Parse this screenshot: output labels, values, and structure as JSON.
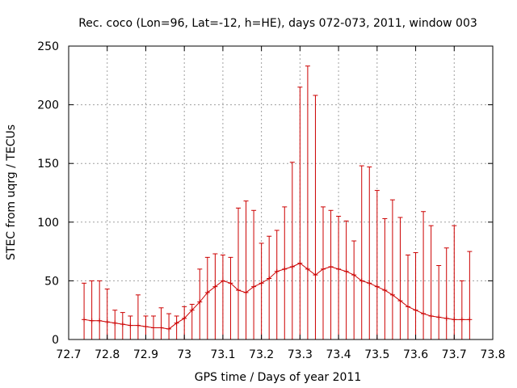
{
  "chart_data": {
    "type": "line",
    "title": "Rec. coco (Lon=96, Lat=-12, h=HE), days 072-073, 2011, window 003",
    "xlabel": "GPS time / Days of year 2011",
    "ylabel": "STEC from uqrg / TECUs",
    "xlim": [
      72.7,
      73.8
    ],
    "ylim": [
      0,
      250
    ],
    "xticks": [
      "72.7",
      "72.8",
      "72.9",
      "73",
      "73.1",
      "73.2",
      "73.3",
      "73.4",
      "73.5",
      "73.6",
      "73.7",
      "73.8"
    ],
    "yticks": [
      "0",
      "50",
      "100",
      "150",
      "200",
      "250"
    ],
    "grid": true,
    "color": "#cc0000",
    "series": [
      {
        "style": "errorbars",
        "x": [
          72.74,
          72.76,
          72.78,
          72.8,
          72.82,
          72.84,
          72.86,
          72.88,
          72.9,
          72.92,
          72.94,
          72.96,
          72.98,
          73.0,
          73.02,
          73.04,
          73.06,
          73.08,
          73.1,
          73.12,
          73.14,
          73.16,
          73.18,
          73.2,
          73.22,
          73.24,
          73.26,
          73.28,
          73.3,
          73.32,
          73.34,
          73.36,
          73.38,
          73.4,
          73.42,
          73.44,
          73.46,
          73.48,
          73.5,
          73.52,
          73.54,
          73.56,
          73.58,
          73.6,
          73.62,
          73.64,
          73.66,
          73.68,
          73.7,
          73.72,
          73.74
        ],
        "y": [
          17,
          16,
          16,
          15,
          14,
          13,
          12,
          12,
          11,
          10,
          10,
          9,
          14,
          18,
          25,
          32,
          40,
          45,
          50,
          48,
          42,
          40,
          45,
          48,
          52,
          58,
          60,
          62,
          65,
          60,
          55,
          60,
          62,
          60,
          58,
          55,
          50,
          48,
          45,
          42,
          38,
          33,
          28,
          25,
          22,
          20,
          19,
          18,
          17,
          17,
          17
        ],
        "y_upper": [
          48,
          50,
          50,
          43,
          25,
          23,
          20,
          38,
          20,
          20,
          27,
          22,
          20,
          28,
          30,
          60,
          70,
          73,
          72,
          70,
          112,
          118,
          110,
          82,
          88,
          93,
          113,
          151,
          215,
          233,
          208,
          113,
          110,
          105,
          101,
          84,
          148,
          147,
          127,
          103,
          119,
          104,
          72,
          74,
          109,
          97,
          63,
          78,
          97,
          50,
          75
        ],
        "y_lower": [
          0,
          0,
          0,
          0,
          0,
          0,
          0,
          0,
          0,
          0,
          0,
          0,
          0,
          0,
          0,
          0,
          0,
          0,
          0,
          0,
          0,
          0,
          0,
          0,
          0,
          0,
          0,
          0,
          0,
          0,
          0,
          0,
          0,
          0,
          0,
          0,
          0,
          0,
          0,
          0,
          0,
          0,
          0,
          0,
          0,
          0,
          0,
          0,
          0,
          0,
          0
        ]
      }
    ]
  }
}
